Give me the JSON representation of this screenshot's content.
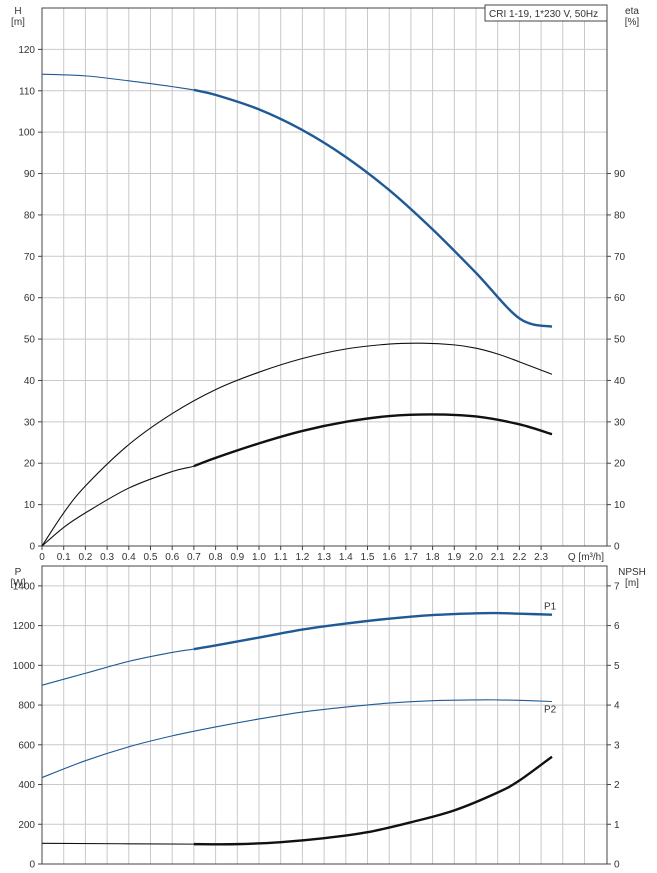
{
  "chart_data": [
    {
      "type": "line",
      "title": "CRI 1-19, 1*230 V, 50Hz",
      "left_axis": {
        "label": "H",
        "unit": "[m]",
        "lim": [
          0,
          130
        ],
        "ticks": [
          0,
          10,
          20,
          30,
          40,
          50,
          60,
          70,
          80,
          90,
          100,
          110,
          120
        ]
      },
      "right_axis": {
        "label": "eta",
        "unit": "[%]",
        "lim": [
          0,
          130
        ],
        "ticks": [
          0,
          10,
          20,
          30,
          40,
          50,
          60,
          70,
          80,
          90
        ]
      },
      "x_axis": {
        "label": "Q [m³/h]",
        "lim": [
          0,
          2.6
        ],
        "ticks": [
          0,
          0.1,
          0.2,
          0.3,
          0.4,
          0.5,
          0.6,
          0.7,
          0.8,
          0.9,
          1.0,
          1.1,
          1.2,
          1.3,
          1.4,
          1.5,
          1.6,
          1.7,
          1.8,
          1.9,
          2.0,
          2.1,
          2.2,
          2.3
        ],
        "tick_labels": [
          "0",
          "0.1",
          "0.2",
          "0.3",
          "0.4",
          "0.5",
          "0.6",
          "0.7",
          "0.8",
          "0.9",
          "1.0",
          "1.1",
          "1.2",
          "1.3",
          "1.4",
          "1.5",
          "1.6",
          "1.7",
          "1.8",
          "1.9",
          "2.0",
          "2.1",
          "2.2",
          "2.3"
        ]
      },
      "grid": true,
      "series": [
        {
          "axis": "left",
          "color": "#1f5a96",
          "heavy_from": 0.7,
          "x": [
            0,
            0.2,
            0.4,
            0.6,
            0.7,
            0.8,
            1.0,
            1.2,
            1.4,
            1.6,
            1.8,
            2.0,
            2.2,
            2.35
          ],
          "y": [
            114,
            113.6,
            112.4,
            111,
            110.2,
            109,
            105.5,
            100.5,
            94,
            86,
            76.5,
            66,
            55,
            53
          ]
        },
        {
          "axis": "right",
          "color": "#111111",
          "heavy_from": null,
          "x": [
            0,
            0.1,
            0.2,
            0.4,
            0.6,
            0.8,
            1.0,
            1.2,
            1.4,
            1.6,
            1.75,
            1.9,
            2.0,
            2.1,
            2.2,
            2.35
          ],
          "y": [
            0,
            8,
            14.5,
            24.5,
            32,
            37.8,
            42,
            45.3,
            47.6,
            48.8,
            49,
            48.6,
            47.8,
            46.4,
            44.5,
            41.5
          ]
        },
        {
          "axis": "right",
          "color": "#111111",
          "heavy_from": 0.7,
          "x": [
            0,
            0.1,
            0.2,
            0.4,
            0.6,
            0.7,
            0.8,
            1.0,
            1.2,
            1.4,
            1.6,
            1.8,
            2.0,
            2.2,
            2.35
          ],
          "y": [
            0,
            4.5,
            8,
            14,
            18,
            19.3,
            21.3,
            24.8,
            27.8,
            30,
            31.4,
            31.8,
            31.3,
            29.4,
            27
          ]
        }
      ]
    },
    {
      "type": "line",
      "left_axis": {
        "label": "P",
        "unit": "[W]",
        "lim": [
          0,
          1500
        ],
        "ticks": [
          0,
          200,
          400,
          600,
          800,
          1000,
          1200,
          1400
        ]
      },
      "right_axis": {
        "label": "NPSH",
        "unit": "[m]",
        "lim": [
          0,
          7.5
        ],
        "ticks": [
          0,
          1,
          2,
          3,
          4,
          5,
          6,
          7
        ]
      },
      "x_lim": [
        0,
        2.6
      ],
      "grid": true,
      "series": [
        {
          "name": "P1",
          "axis": "left",
          "color": "#1f5a96",
          "heavy_from": 0.7,
          "x": [
            0,
            0.2,
            0.4,
            0.6,
            0.7,
            0.8,
            1.0,
            1.2,
            1.4,
            1.6,
            1.8,
            2.0,
            2.1,
            2.2,
            2.35
          ],
          "y": [
            900,
            960,
            1020,
            1065,
            1082,
            1100,
            1140,
            1180,
            1210,
            1235,
            1253,
            1262,
            1263,
            1260,
            1255
          ]
        },
        {
          "name": "P2",
          "axis": "left",
          "color": "#1f5a96",
          "heavy_from": null,
          "x": [
            0,
            0.2,
            0.4,
            0.6,
            0.8,
            1.0,
            1.2,
            1.4,
            1.6,
            1.8,
            2.0,
            2.1,
            2.2,
            2.35
          ],
          "y": [
            435,
            520,
            590,
            645,
            690,
            730,
            765,
            790,
            810,
            822,
            826,
            826,
            824,
            818
          ]
        },
        {
          "axis": "right",
          "color": "#111111",
          "heavy_from": 0.7,
          "x": [
            0,
            0.7,
            0.9,
            1.1,
            1.3,
            1.5,
            1.7,
            1.9,
            2.1,
            2.2,
            2.35
          ],
          "y": [
            0.52,
            0.5,
            0.5,
            0.55,
            0.65,
            0.8,
            1.05,
            1.35,
            1.8,
            2.1,
            2.7
          ]
        }
      ]
    }
  ]
}
